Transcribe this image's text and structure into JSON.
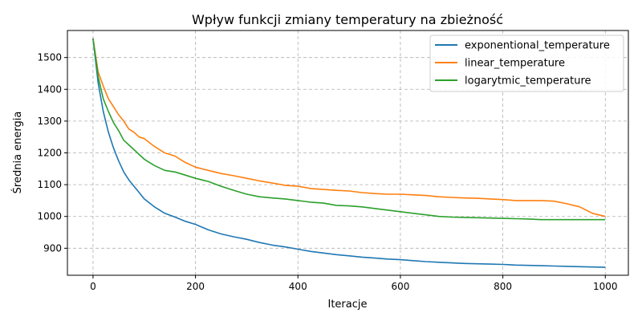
{
  "chart_data": {
    "type": "line",
    "title": "Wpływ funkcji zmiany temperatury na zbieżność",
    "xlabel": "Iteracje",
    "ylabel": "Średnia energia",
    "xlim": [
      -50,
      1045
    ],
    "ylim": [
      815,
      1585
    ],
    "xticks": [
      0,
      200,
      400,
      600,
      800,
      1000
    ],
    "yticks": [
      900,
      1000,
      1100,
      1200,
      1300,
      1400,
      1500
    ],
    "grid": true,
    "legend_position": "top-right",
    "x": [
      0,
      10,
      20,
      30,
      40,
      50,
      60,
      70,
      80,
      90,
      100,
      120,
      140,
      160,
      180,
      200,
      225,
      250,
      275,
      300,
      325,
      350,
      375,
      400,
      425,
      450,
      475,
      500,
      525,
      550,
      575,
      600,
      625,
      650,
      675,
      700,
      725,
      750,
      775,
      800,
      825,
      850,
      875,
      900,
      925,
      950,
      975,
      1000
    ],
    "series": [
      {
        "name": "exponentional_temperature",
        "color": "#1f77b4",
        "values": [
          1560,
          1420,
          1330,
          1265,
          1215,
          1175,
          1140,
          1115,
          1095,
          1075,
          1055,
          1030,
          1010,
          998,
          985,
          975,
          958,
          945,
          936,
          928,
          918,
          910,
          904,
          897,
          890,
          885,
          880,
          876,
          872,
          869,
          866,
          864,
          861,
          858,
          856,
          854,
          852,
          851,
          850,
          849,
          847,
          846,
          845,
          844,
          843,
          842,
          841,
          840
        ]
      },
      {
        "name": "linear_temperature",
        "color": "#ff7f0e",
        "values": [
          1560,
          1455,
          1410,
          1370,
          1345,
          1320,
          1300,
          1275,
          1265,
          1250,
          1245,
          1220,
          1200,
          1190,
          1170,
          1155,
          1145,
          1135,
          1128,
          1120,
          1112,
          1105,
          1098,
          1095,
          1088,
          1085,
          1082,
          1080,
          1075,
          1072,
          1070,
          1070,
          1068,
          1066,
          1062,
          1060,
          1058,
          1057,
          1055,
          1053,
          1050,
          1050,
          1050,
          1048,
          1040,
          1030,
          1010,
          1000
        ]
      },
      {
        "name": "logarytmic_temperature",
        "color": "#2ca02c",
        "values": [
          1560,
          1440,
          1370,
          1330,
          1295,
          1270,
          1240,
          1225,
          1210,
          1195,
          1180,
          1160,
          1145,
          1140,
          1130,
          1120,
          1110,
          1095,
          1082,
          1070,
          1062,
          1058,
          1055,
          1050,
          1045,
          1042,
          1035,
          1033,
          1030,
          1025,
          1020,
          1015,
          1010,
          1005,
          1000,
          998,
          997,
          996,
          995,
          994,
          993,
          992,
          990,
          990,
          990,
          990,
          990,
          990
        ]
      }
    ]
  }
}
